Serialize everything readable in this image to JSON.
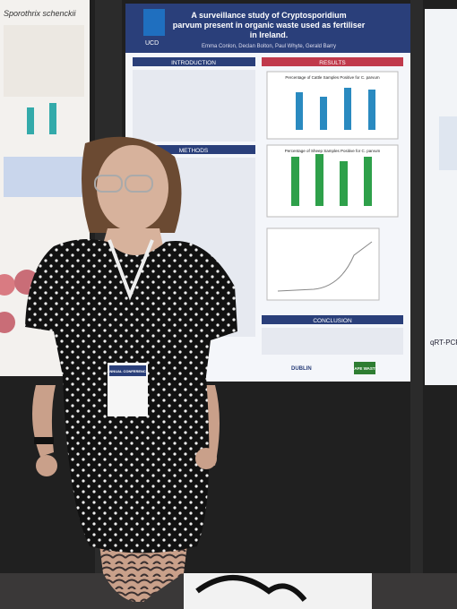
{
  "poster": {
    "title_lines": [
      "A surveillance study of Cryptosporidium",
      "parvum present in organic waste used as fertiliser",
      "in Ireland."
    ],
    "authors": "Emma Conlon, Declan Bolton, Paul Whyte, Gerald Barry",
    "sections": {
      "introduction": "INTRODUCTION",
      "results": "RESULTS",
      "methods": "METHODS",
      "conclusion": "CONCLUSION"
    },
    "chart_titles": [
      "Percentage of Cattle Samples Positive for C. parvum",
      "Percentage of Sheep Samples Positive for C. parvum"
    ],
    "logos": [
      "UCD",
      "DUBLIN",
      "SAFE WASTE"
    ]
  },
  "left_poster": {
    "heading": "Sporothrix schenckii"
  },
  "right_poster": {
    "heading": "qRT-PCR"
  },
  "badge": {
    "title": "ANNUAL CONFERENCE"
  }
}
